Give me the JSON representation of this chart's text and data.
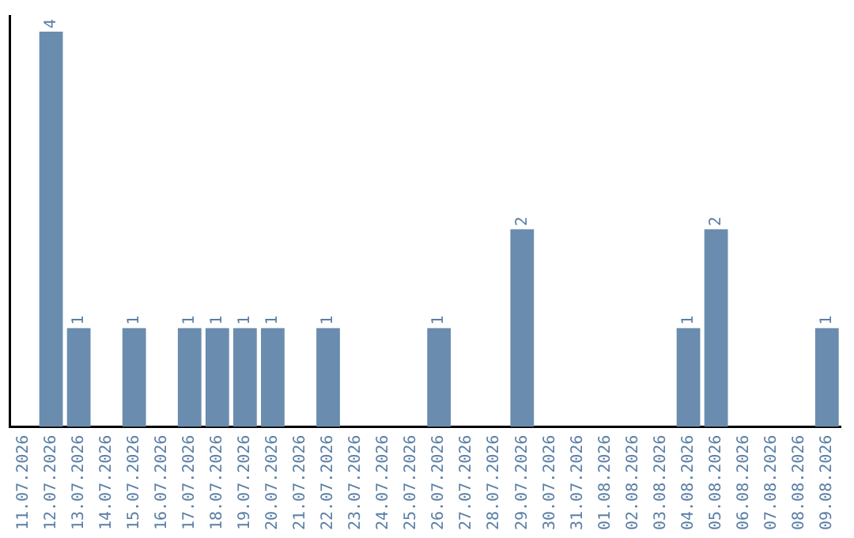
{
  "chart_data": {
    "type": "bar",
    "categories": [
      "11.07.2026",
      "12.07.2026",
      "13.07.2026",
      "14.07.2026",
      "15.07.2026",
      "16.07.2026",
      "17.07.2026",
      "18.07.2026",
      "19.07.2026",
      "20.07.2026",
      "21.07.2026",
      "22.07.2026",
      "23.07.2026",
      "24.07.2026",
      "25.07.2026",
      "26.07.2026",
      "27.07.2026",
      "28.07.2026",
      "29.07.2026",
      "30.07.2026",
      "31.07.2026",
      "01.08.2026",
      "02.08.2026",
      "03.08.2026",
      "04.08.2026",
      "05.08.2026",
      "06.08.2026",
      "07.08.2026",
      "08.08.2026",
      "09.08.2026"
    ],
    "values": [
      0,
      4,
      1,
      0,
      1,
      0,
      1,
      1,
      1,
      1,
      0,
      1,
      0,
      0,
      0,
      1,
      0,
      0,
      2,
      0,
      0,
      0,
      0,
      0,
      1,
      2,
      0,
      0,
      0,
      1
    ],
    "value_labels": [
      null,
      "4",
      "1",
      null,
      "1",
      null,
      "1",
      "1",
      "1",
      "1",
      null,
      "1",
      null,
      null,
      null,
      "1",
      null,
      null,
      "2",
      null,
      null,
      null,
      null,
      null,
      "1",
      "2",
      null,
      null,
      null,
      "1"
    ],
    "color": "#6a8caf",
    "grid": false,
    "legend": false,
    "tick_labels": "x"
  }
}
